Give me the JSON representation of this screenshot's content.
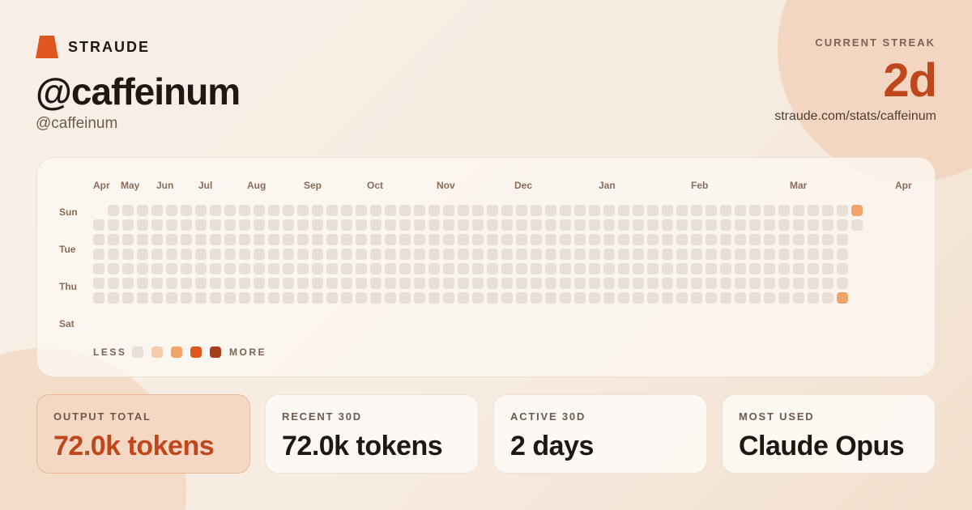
{
  "brand": {
    "name": "STRAUDE"
  },
  "profile": {
    "display_name": "@caffeinum",
    "handle": "@caffeinum"
  },
  "streak": {
    "label": "CURRENT STREAK",
    "value": "2d",
    "url": "straude.com/stats/caffeinum"
  },
  "chart_data": {
    "type": "heatmap",
    "months": [
      "Apr",
      "May",
      "Jun",
      "Jul",
      "Aug",
      "Sep",
      "Oct",
      "Nov",
      "Dec",
      "Jan",
      "Feb",
      "Mar",
      "Apr"
    ],
    "day_labels": [
      "Sun",
      "Tue",
      "Thu",
      "Sat"
    ],
    "levels_legend": {
      "less": "LESS",
      "more": "MORE"
    },
    "level_colors": [
      "#e8e0d6",
      "#f6cbae",
      "#f0a46a",
      "#e0561f",
      "#a63d1c"
    ],
    "weeks_note_format": "one string per week, Sun..Sat, '-' = no day, digit = activity level 0-4",
    "weeks": [
      "-000000",
      "0000000",
      "0000000",
      "0000000",
      "0000000",
      "0000000",
      "0000000",
      "0000000",
      "0000000",
      "0000000",
      "0000000",
      "0000000",
      "0000000",
      "0000000",
      "0000000",
      "0000000",
      "0000000",
      "0000000",
      "0000000",
      "0000000",
      "0000000",
      "0000000",
      "0000000",
      "0000000",
      "0000000",
      "0000000",
      "0000000",
      "0000000",
      "0000000",
      "0000000",
      "0000000",
      "0000000",
      "0000000",
      "0000000",
      "0000000",
      "0000000",
      "0000000",
      "0000000",
      "0000000",
      "0000000",
      "0000000",
      "0000000",
      "0000000",
      "0000000",
      "0000000",
      "0000000",
      "0000000",
      "0000000",
      "0000000",
      "0000000",
      "0000000",
      "0000002",
      "20-----"
    ]
  },
  "stats": [
    {
      "label": "OUTPUT TOTAL",
      "value": "72.0k tokens"
    },
    {
      "label": "RECENT 30D",
      "value": "72.0k tokens"
    },
    {
      "label": "ACTIVE 30D",
      "value": "2 days"
    },
    {
      "label": "MOST USED",
      "value": "Claude Opus"
    }
  ]
}
